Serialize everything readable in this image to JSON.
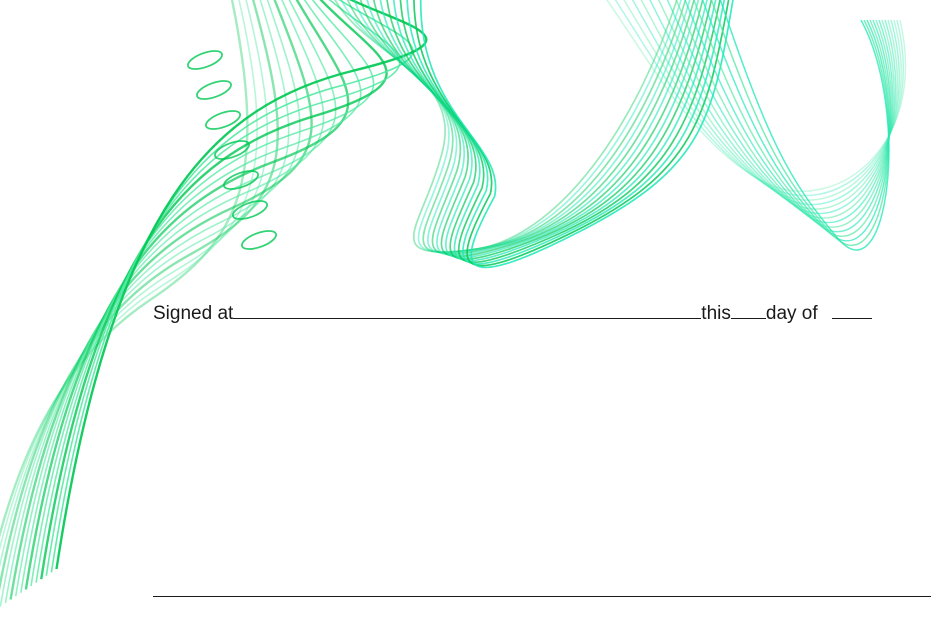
{
  "document": {
    "signed_at_label": "Signed at",
    "this_label": "this",
    "day_of_label": "day of"
  },
  "decoration": {
    "name": "green-wave-lines",
    "colors": {
      "primary": "#00c853",
      "light": "#4de8a0",
      "teal": "#1de9b6"
    }
  }
}
